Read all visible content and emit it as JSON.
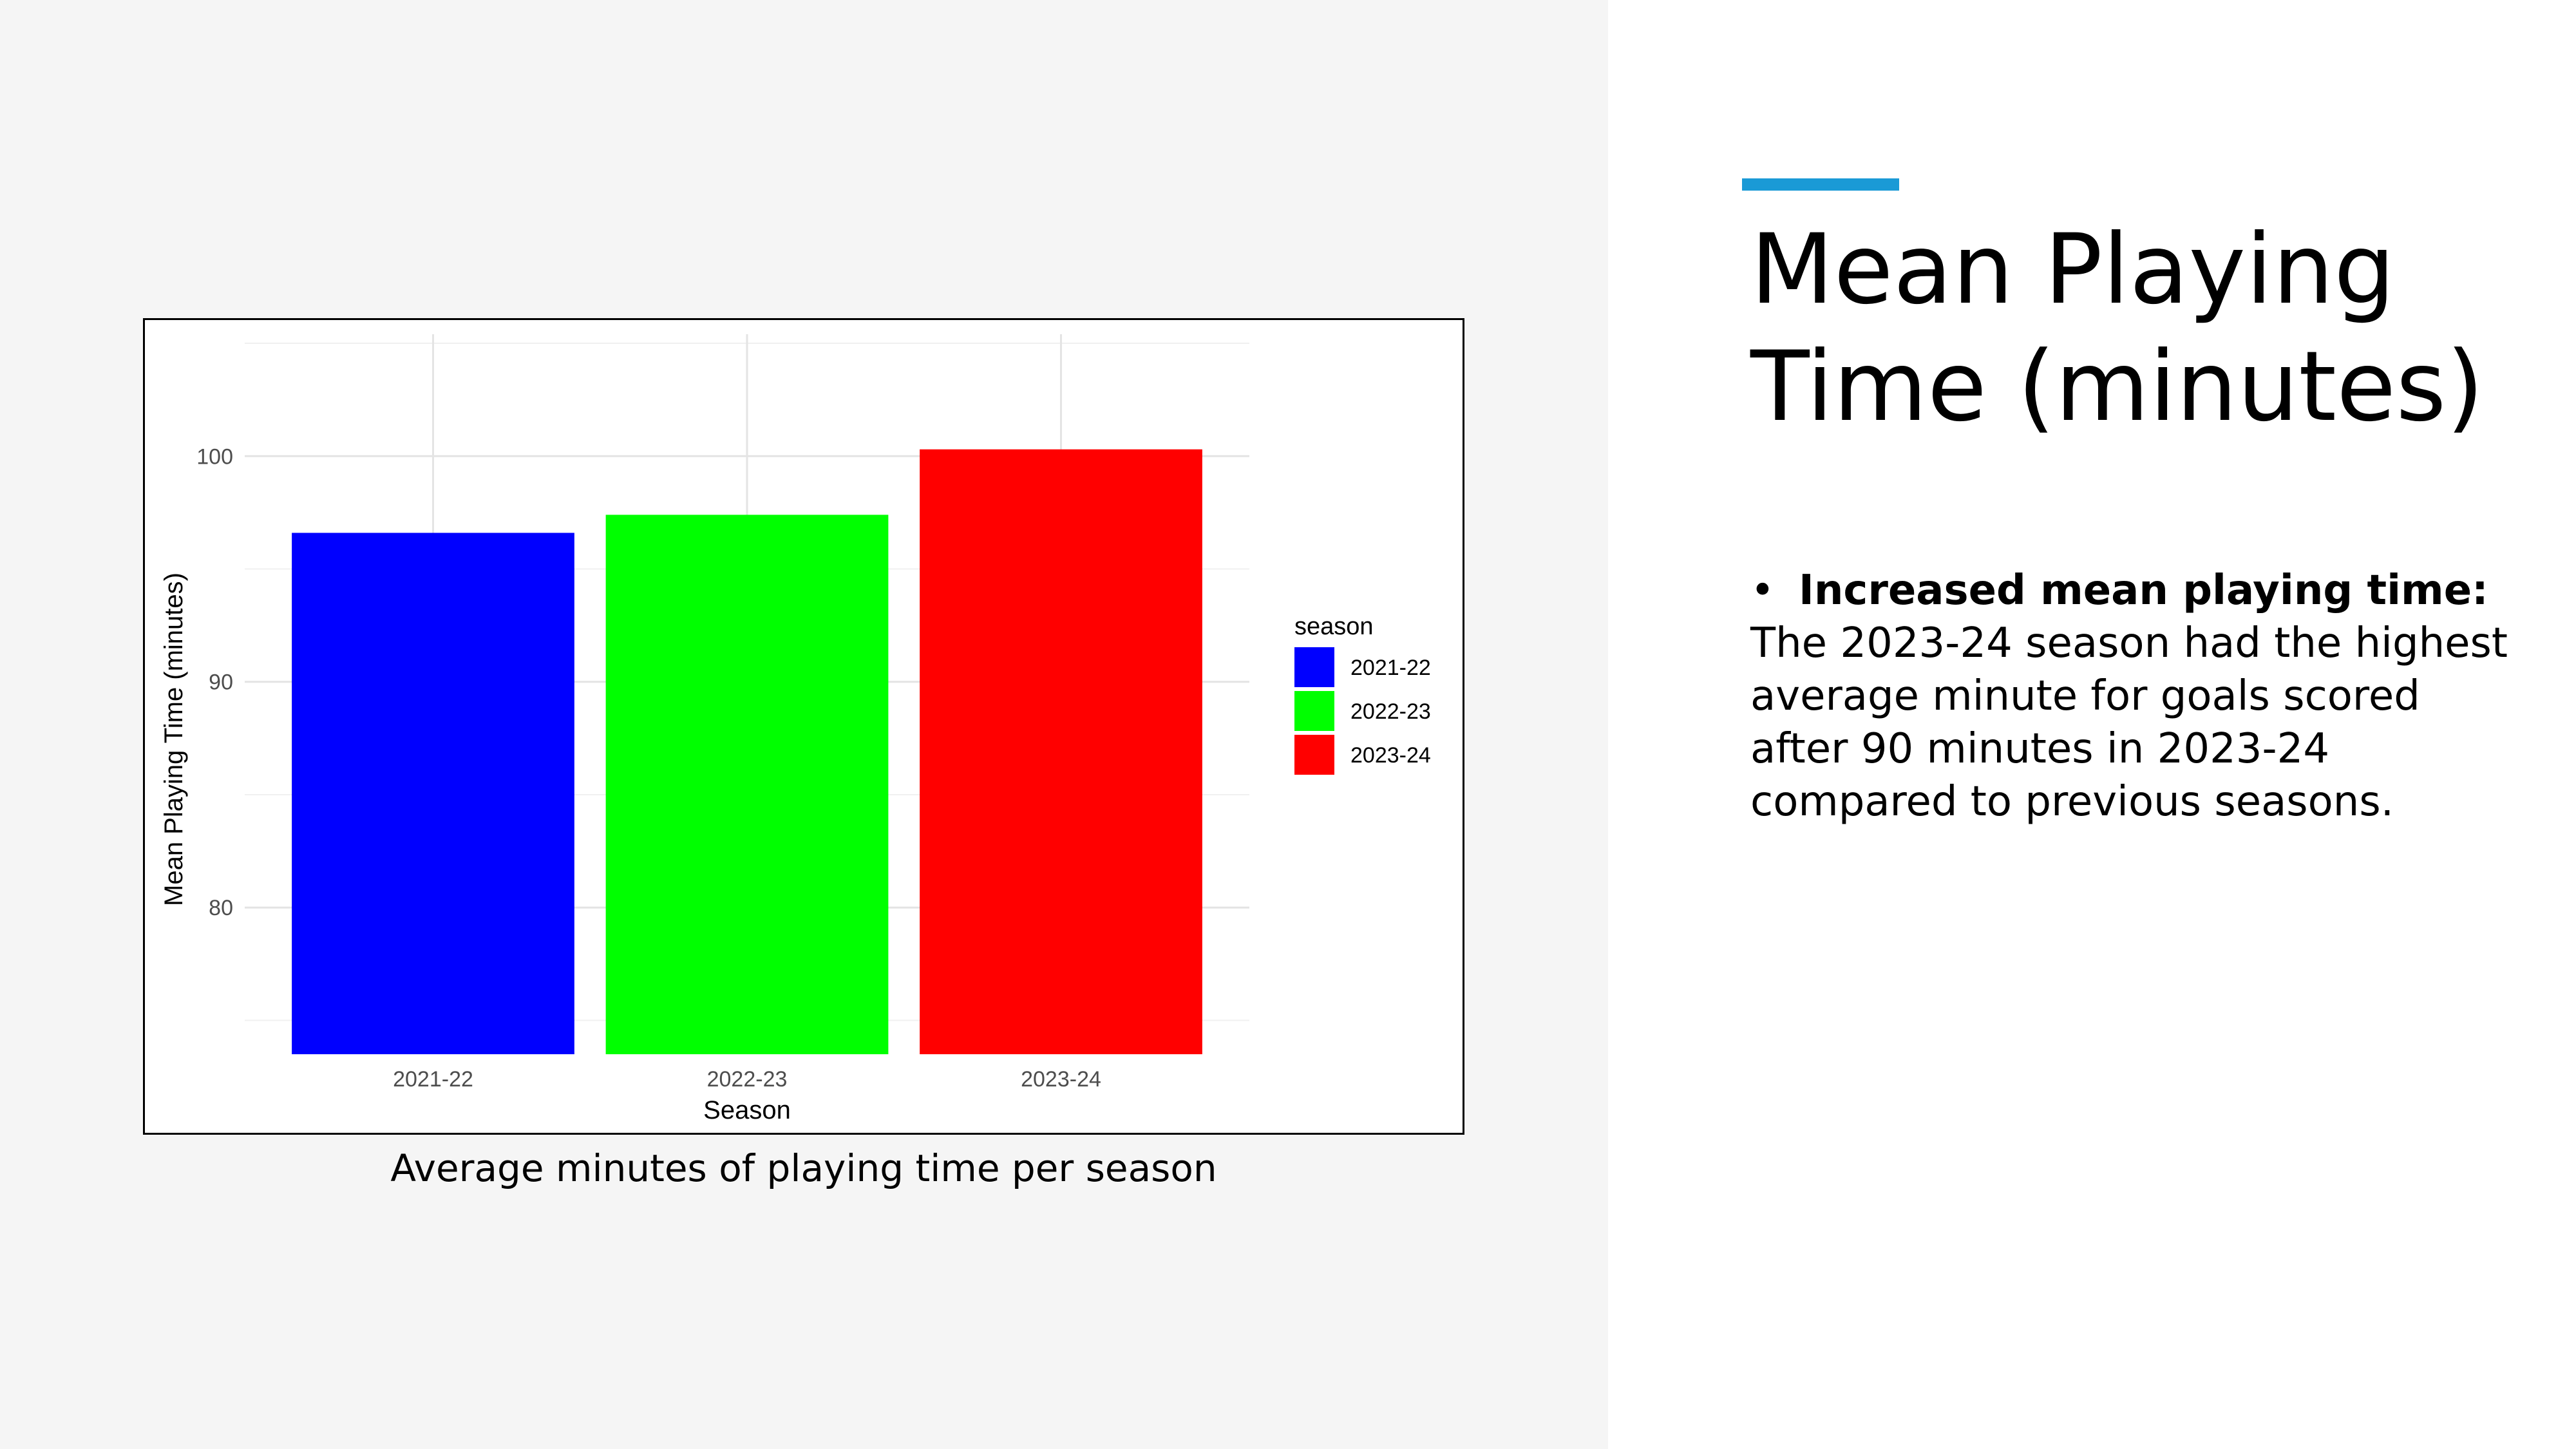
{
  "slide": {
    "title": "Mean Playing Time (minutes)",
    "caption": "Average minutes of playing time per season",
    "bullet": {
      "heading": "Increased mean playing time:",
      "text": "The 2023-24 season had the highest average minute for goals scored after 90 minutes in 2023-24 compared to previous seasons."
    },
    "accent_color": "#1a9ad6"
  },
  "chart_data": {
    "type": "bar",
    "categories": [
      "2021-22",
      "2022-23",
      "2023-24"
    ],
    "values": [
      96.6,
      97.4,
      100.3
    ],
    "colors": [
      "#0000ff",
      "#00ff00",
      "#ff0000"
    ],
    "xlabel": "Season",
    "ylabel": "Mean Playing Time (minutes)",
    "ylim": [
      73.5,
      105.4
    ],
    "yticks": [
      80,
      90,
      100
    ],
    "grid": true,
    "legend": {
      "title": "season",
      "position": "right",
      "entries": [
        "2021-22",
        "2022-23",
        "2023-24"
      ]
    }
  }
}
